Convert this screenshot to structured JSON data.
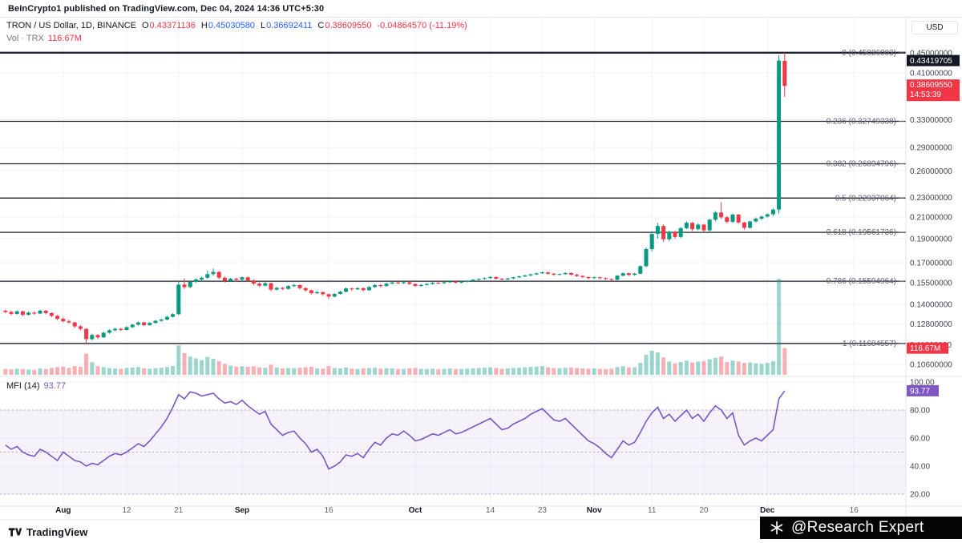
{
  "page": {
    "publisher_line": "BeInCrypto1 published on TradingView.com, Dec 04, 2024 14:36 UTC+5:30"
  },
  "header": {
    "symbol_title": "TRON / US Dollar, 1D, BINANCE",
    "ohlc": {
      "o_label": "O",
      "o": "0.43371136",
      "h_label": "H",
      "h": "0.45030580",
      "l_label": "L",
      "l": "0.36692411",
      "c_label": "C",
      "c": "0.38609550",
      "change": "-0.04864570 (-11.19%)"
    },
    "volume_label": "Vol · TRX",
    "volume_value": "116.67M",
    "currency_button": "USD"
  },
  "mfi": {
    "label": "MFI (14)",
    "value": "93.77"
  },
  "footer": {
    "logo_text": "TradingView",
    "watermark": "@Research Expert"
  },
  "colors": {
    "up": "#089981",
    "down": "#f23645",
    "accent_blue": "#2962ff",
    "mfi_line": "#7e57c2",
    "mfi_band_fill": "rgba(126,87,194,0.08)",
    "volume_up": "rgba(8,153,129,0.4)",
    "volume_down": "rgba(242,54,69,0.4)",
    "badge_black": "#131722",
    "grid": "#f0f3fa",
    "fib_line": "#1e222d",
    "axis_text": "#434651",
    "fib_label": "#62656f"
  },
  "chart_data": {
    "type": "candlestick",
    "title": "TRON / US Dollar, 1D, BINANCE",
    "scale": "logarithmic",
    "legend_note": "main pane: daily candles with Fibonacci retracement; lower pane: MFI(14); volume overlay at bottom of price pane",
    "candles": [
      [
        0.136,
        0.1368,
        0.1344,
        0.1352
      ],
      [
        0.1352,
        0.136,
        0.1332,
        0.134
      ],
      [
        0.134,
        0.1362,
        0.1336,
        0.1356
      ],
      [
        0.1356,
        0.136,
        0.1326,
        0.1335
      ],
      [
        0.1335,
        0.1354,
        0.133,
        0.1348
      ],
      [
        0.1348,
        0.1356,
        0.1335,
        0.1342
      ],
      [
        0.1342,
        0.1366,
        0.1338,
        0.136
      ],
      [
        0.136,
        0.1365,
        0.1338,
        0.1345
      ],
      [
        0.1345,
        0.135,
        0.132,
        0.1328
      ],
      [
        0.1328,
        0.1334,
        0.1302,
        0.131
      ],
      [
        0.131,
        0.1318,
        0.1288,
        0.1295
      ],
      [
        0.1295,
        0.1304,
        0.128,
        0.1288
      ],
      [
        0.1288,
        0.1292,
        0.1256,
        0.1265
      ],
      [
        0.1265,
        0.1272,
        0.1242,
        0.125
      ],
      [
        0.125,
        0.1254,
        0.1162,
        0.1192
      ],
      [
        0.1192,
        0.1222,
        0.1186,
        0.1215
      ],
      [
        0.1215,
        0.122,
        0.1192,
        0.1202
      ],
      [
        0.1202,
        0.1232,
        0.1198,
        0.1228
      ],
      [
        0.1228,
        0.1248,
        0.1222,
        0.1242
      ],
      [
        0.1242,
        0.1256,
        0.1236,
        0.125
      ],
      [
        0.125,
        0.1255,
        0.1238,
        0.1244
      ],
      [
        0.1244,
        0.1266,
        0.124,
        0.126
      ],
      [
        0.126,
        0.128,
        0.1255,
        0.1275
      ],
      [
        0.1275,
        0.1293,
        0.127,
        0.1288
      ],
      [
        0.1288,
        0.1292,
        0.1266,
        0.1272
      ],
      [
        0.1272,
        0.129,
        0.1268,
        0.1285
      ],
      [
        0.1285,
        0.1303,
        0.128,
        0.1298
      ],
      [
        0.1298,
        0.1311,
        0.1292,
        0.1305
      ],
      [
        0.1305,
        0.1327,
        0.13,
        0.1322
      ],
      [
        0.1322,
        0.1344,
        0.1318,
        0.1338
      ],
      [
        0.1338,
        0.156,
        0.1335,
        0.1535
      ],
      [
        0.1535,
        0.158,
        0.1505,
        0.1518
      ],
      [
        0.1518,
        0.1562,
        0.151,
        0.1555
      ],
      [
        0.1555,
        0.158,
        0.1548,
        0.1572
      ],
      [
        0.1572,
        0.1592,
        0.156,
        0.1585
      ],
      [
        0.1585,
        0.1638,
        0.1578,
        0.1612
      ],
      [
        0.1612,
        0.1655,
        0.16,
        0.1628
      ],
      [
        0.1628,
        0.1635,
        0.1575,
        0.1585
      ],
      [
        0.1585,
        0.1592,
        0.155,
        0.1562
      ],
      [
        0.1562,
        0.1584,
        0.1555,
        0.1578
      ],
      [
        0.1578,
        0.1586,
        0.1558,
        0.157
      ],
      [
        0.157,
        0.1594,
        0.1565,
        0.1588
      ],
      [
        0.1588,
        0.1593,
        0.1556,
        0.1565
      ],
      [
        0.1565,
        0.1572,
        0.1532,
        0.1542
      ],
      [
        0.1542,
        0.155,
        0.1518,
        0.1528
      ],
      [
        0.1528,
        0.1552,
        0.1522,
        0.1545
      ],
      [
        0.1545,
        0.1548,
        0.1488,
        0.15
      ],
      [
        0.15,
        0.152,
        0.1494,
        0.1512
      ],
      [
        0.1512,
        0.1518,
        0.1496,
        0.1505
      ],
      [
        0.1505,
        0.153,
        0.15,
        0.1525
      ],
      [
        0.1525,
        0.154,
        0.1518,
        0.1532
      ],
      [
        0.1532,
        0.1536,
        0.1502,
        0.151
      ],
      [
        0.151,
        0.1516,
        0.1486,
        0.1495
      ],
      [
        0.1495,
        0.15,
        0.1466,
        0.1475
      ],
      [
        0.1475,
        0.149,
        0.147,
        0.1482
      ],
      [
        0.1482,
        0.1487,
        0.146,
        0.1468
      ],
      [
        0.1468,
        0.1473,
        0.1438,
        0.1452
      ],
      [
        0.1452,
        0.1476,
        0.1446,
        0.147
      ],
      [
        0.147,
        0.1492,
        0.1464,
        0.1485
      ],
      [
        0.1485,
        0.1514,
        0.148,
        0.1508
      ],
      [
        0.1508,
        0.1514,
        0.1492,
        0.1502
      ],
      [
        0.1502,
        0.1516,
        0.1496,
        0.151
      ],
      [
        0.151,
        0.1515,
        0.1488,
        0.1496
      ],
      [
        0.1496,
        0.1524,
        0.1492,
        0.1518
      ],
      [
        0.1518,
        0.1538,
        0.1512,
        0.1532
      ],
      [
        0.1532,
        0.1538,
        0.1516,
        0.1525
      ],
      [
        0.1525,
        0.1548,
        0.152,
        0.1542
      ],
      [
        0.1542,
        0.1556,
        0.1536,
        0.155
      ],
      [
        0.155,
        0.1556,
        0.1538,
        0.1545
      ],
      [
        0.1545,
        0.1558,
        0.154,
        0.1552
      ],
      [
        0.1552,
        0.1558,
        0.1532,
        0.154
      ],
      [
        0.154,
        0.1545,
        0.1518,
        0.1526
      ],
      [
        0.1526,
        0.1538,
        0.152,
        0.1533
      ],
      [
        0.1533,
        0.1545,
        0.1528,
        0.154
      ],
      [
        0.154,
        0.1553,
        0.1535,
        0.1548
      ],
      [
        0.1548,
        0.1552,
        0.1538,
        0.1545
      ],
      [
        0.1545,
        0.1557,
        0.154,
        0.1552
      ],
      [
        0.1552,
        0.1563,
        0.1547,
        0.1558
      ],
      [
        0.1558,
        0.1562,
        0.1543,
        0.155
      ],
      [
        0.155,
        0.156,
        0.1545,
        0.1556
      ],
      [
        0.1556,
        0.1567,
        0.1551,
        0.1562
      ],
      [
        0.1562,
        0.1575,
        0.1557,
        0.157
      ],
      [
        0.157,
        0.1581,
        0.1565,
        0.1576
      ],
      [
        0.1576,
        0.1587,
        0.1571,
        0.1582
      ],
      [
        0.1582,
        0.1595,
        0.1577,
        0.159
      ],
      [
        0.159,
        0.1594,
        0.1572,
        0.1578
      ],
      [
        0.1578,
        0.1583,
        0.1565,
        0.1572
      ],
      [
        0.1572,
        0.1585,
        0.1567,
        0.158
      ],
      [
        0.158,
        0.1592,
        0.1575,
        0.1588
      ],
      [
        0.1588,
        0.16,
        0.1583,
        0.1595
      ],
      [
        0.1595,
        0.1607,
        0.159,
        0.1602
      ],
      [
        0.1602,
        0.1615,
        0.1597,
        0.161
      ],
      [
        0.161,
        0.1622,
        0.1605,
        0.1618
      ],
      [
        0.1618,
        0.163,
        0.1613,
        0.1625
      ],
      [
        0.1625,
        0.1629,
        0.1608,
        0.1615
      ],
      [
        0.1615,
        0.162,
        0.16,
        0.1608
      ],
      [
        0.1608,
        0.1617,
        0.1603,
        0.1612
      ],
      [
        0.1612,
        0.1625,
        0.1607,
        0.162
      ],
      [
        0.162,
        0.1624,
        0.16,
        0.1608
      ],
      [
        0.1608,
        0.1613,
        0.159,
        0.1598
      ],
      [
        0.1598,
        0.1603,
        0.1582,
        0.159
      ],
      [
        0.159,
        0.1595,
        0.1574,
        0.1582
      ],
      [
        0.1582,
        0.1593,
        0.1577,
        0.1588
      ],
      [
        0.1588,
        0.1592,
        0.1574,
        0.1582
      ],
      [
        0.1582,
        0.1587,
        0.1568,
        0.1576
      ],
      [
        0.1576,
        0.1581,
        0.1561,
        0.157
      ],
      [
        0.157,
        0.1605,
        0.1565,
        0.16
      ],
      [
        0.16,
        0.1623,
        0.1595,
        0.1618
      ],
      [
        0.1618,
        0.1622,
        0.1598,
        0.1606
      ],
      [
        0.1606,
        0.162,
        0.16,
        0.1615
      ],
      [
        0.1615,
        0.1678,
        0.161,
        0.1672
      ],
      [
        0.1672,
        0.1825,
        0.1665,
        0.181
      ],
      [
        0.181,
        0.1965,
        0.179,
        0.1942
      ],
      [
        0.1942,
        0.2045,
        0.19,
        0.2015
      ],
      [
        0.2015,
        0.203,
        0.187,
        0.1895
      ],
      [
        0.1895,
        0.1972,
        0.188,
        0.1958
      ],
      [
        0.1958,
        0.197,
        0.1898,
        0.1915
      ],
      [
        0.1915,
        0.2005,
        0.1905,
        0.1995
      ],
      [
        0.1995,
        0.206,
        0.1985,
        0.2045
      ],
      [
        0.2045,
        0.2052,
        0.1968,
        0.1985
      ],
      [
        0.1985,
        0.204,
        0.1975,
        0.2028
      ],
      [
        0.2028,
        0.2035,
        0.1958,
        0.1975
      ],
      [
        0.1975,
        0.2085,
        0.1965,
        0.2075
      ],
      [
        0.2075,
        0.216,
        0.206,
        0.2145
      ],
      [
        0.2145,
        0.225,
        0.2085,
        0.2098
      ],
      [
        0.2098,
        0.211,
        0.204,
        0.2055
      ],
      [
        0.2055,
        0.2135,
        0.2045,
        0.2125
      ],
      [
        0.2125,
        0.213,
        0.2035,
        0.2048
      ],
      [
        0.2048,
        0.2055,
        0.198,
        0.1998
      ],
      [
        0.1998,
        0.2065,
        0.199,
        0.2058
      ],
      [
        0.2058,
        0.2095,
        0.2048,
        0.2085
      ],
      [
        0.2085,
        0.2115,
        0.2072,
        0.2105
      ],
      [
        0.2105,
        0.2135,
        0.2095,
        0.2128
      ],
      [
        0.2128,
        0.2185,
        0.211,
        0.2175
      ],
      [
        0.2175,
        0.445,
        0.2135,
        0.4342
      ],
      [
        0.4337,
        0.4503,
        0.3669,
        0.3861
      ]
    ],
    "volumes_m": [
      26,
      24,
      27,
      25,
      23,
      22,
      28,
      25,
      30,
      34,
      36,
      30,
      38,
      35,
      92,
      55,
      38,
      34,
      30,
      28,
      26,
      30,
      32,
      34,
      28,
      27,
      29,
      31,
      34,
      38,
      128,
      95,
      80,
      72,
      64,
      78,
      70,
      60,
      48,
      40,
      36,
      38,
      35,
      37,
      33,
      31,
      44,
      32,
      28,
      30,
      29,
      31,
      33,
      35,
      28,
      27,
      38,
      30,
      28,
      32,
      27,
      26,
      28,
      30,
      31,
      27,
      29,
      28,
      25,
      26,
      28,
      30,
      26,
      25,
      27,
      24,
      26,
      28,
      25,
      26,
      27,
      29,
      30,
      31,
      33,
      30,
      27,
      28,
      30,
      31,
      33,
      35,
      36,
      38,
      33,
      30,
      29,
      31,
      32,
      30,
      28,
      27,
      28,
      26,
      25,
      27,
      34,
      38,
      32,
      33,
      52,
      88,
      105,
      98,
      76,
      58,
      50,
      56,
      62,
      54,
      58,
      60,
      68,
      74,
      80,
      56,
      62,
      58,
      52,
      54,
      50,
      48,
      52,
      60,
      420,
      116.67
    ],
    "volume_scale_max_m": 420,
    "mfi": [
      55,
      52,
      54,
      50,
      48,
      47,
      52,
      50,
      47,
      44,
      50,
      47,
      44,
      43,
      40,
      42,
      41,
      44,
      47,
      49,
      48,
      50,
      53,
      56,
      54,
      58,
      63,
      68,
      74,
      82,
      91,
      88,
      93,
      92,
      90,
      91,
      92,
      88,
      85,
      86,
      84,
      87,
      83,
      80,
      77,
      79,
      70,
      66,
      62,
      64,
      65,
      60,
      56,
      50,
      52,
      47,
      38,
      40,
      43,
      48,
      47,
      49,
      46,
      52,
      57,
      55,
      60,
      63,
      62,
      65,
      62,
      58,
      59,
      61,
      63,
      62,
      64,
      66,
      63,
      64,
      66,
      68,
      70,
      72,
      74,
      70,
      66,
      67,
      70,
      72,
      74,
      77,
      79,
      81,
      77,
      73,
      72,
      74,
      70,
      66,
      62,
      58,
      56,
      53,
      49,
      46,
      52,
      58,
      55,
      57,
      64,
      72,
      78,
      82,
      74,
      77,
      72,
      76,
      80,
      74,
      77,
      72,
      78,
      83,
      80,
      74,
      78,
      62,
      55,
      58,
      60,
      58,
      62,
      66,
      88,
      93.77
    ],
    "mfi_bands": {
      "upper": 80,
      "middle": 50,
      "lower": 20
    },
    "fib_levels": [
      {
        "label": "0 (0.45026003)",
        "ratio": "0",
        "price": 0.45026003
      },
      {
        "label": "0.236 (0.32749338)",
        "ratio": "0.236",
        "price": 0.32749338
      },
      {
        "label": "0.382 (0.26894796)",
        "ratio": "0.382",
        "price": 0.26894796
      },
      {
        "label": "0.5 (0.22937064)",
        "ratio": "0.5",
        "price": 0.22937064
      },
      {
        "label": "0.618 (0.19561736)",
        "ratio": "0.618",
        "price": 0.19561736
      },
      {
        "label": "0.786 (0.15594964)",
        "ratio": "0.786",
        "price": 0.15594964
      },
      {
        "label": "1 (0.11684557)",
        "ratio": "1",
        "price": 0.11684557
      }
    ],
    "price_axis_labels": [
      {
        "text": "0.45000000",
        "value": 0.45
      },
      {
        "text": "0.41000000",
        "value": 0.41
      },
      {
        "text": "0.33000000",
        "value": 0.33
      },
      {
        "text": "0.29000000",
        "value": 0.29
      },
      {
        "text": "0.26000000",
        "value": 0.26
      },
      {
        "text": "0.23000000",
        "value": 0.23
      },
      {
        "text": "0.21000000",
        "value": 0.21
      },
      {
        "text": "0.19000000",
        "value": 0.19
      },
      {
        "text": "0.17000000",
        "value": 0.17
      },
      {
        "text": "0.15500000",
        "value": 0.155
      },
      {
        "text": "0.14000000",
        "value": 0.14
      },
      {
        "text": "0.12800000",
        "value": 0.128
      },
      {
        "text": "0.11600000",
        "value": 0.116
      },
      {
        "text": "0.10600000",
        "value": 0.106
      }
    ],
    "mfi_axis_labels": [
      {
        "text": "100.00",
        "value": 100
      },
      {
        "text": "80.00",
        "value": 80
      },
      {
        "text": "60.00",
        "value": 60
      },
      {
        "text": "40.00",
        "value": 40
      },
      {
        "text": "20.00",
        "value": 20
      }
    ],
    "time_axis_labels": [
      {
        "label": "Aug",
        "i": 10,
        "strong": true
      },
      {
        "label": "12",
        "i": 21
      },
      {
        "label": "21",
        "i": 30
      },
      {
        "label": "Sep",
        "i": 41,
        "strong": true
      },
      {
        "label": "16",
        "i": 56
      },
      {
        "label": "Oct",
        "i": 71,
        "strong": true
      },
      {
        "label": "14",
        "i": 84
      },
      {
        "label": "23",
        "i": 93
      },
      {
        "label": "Nov",
        "i": 102,
        "strong": true
      },
      {
        "label": "11",
        "i": 112
      },
      {
        "label": "20",
        "i": 121
      },
      {
        "label": "Dec",
        "i": 132,
        "strong": true
      },
      {
        "label": "16",
        "i": 147
      }
    ],
    "badges": {
      "last": {
        "text": "0.43419705",
        "value": 0.43419705
      },
      "close": {
        "text": "0.38609550",
        "countdown": "14:53:39",
        "value": 0.3860955
      },
      "volume": {
        "text": "116.67M"
      },
      "mfi": {
        "text": "93.77",
        "value": 93.77
      }
    }
  }
}
